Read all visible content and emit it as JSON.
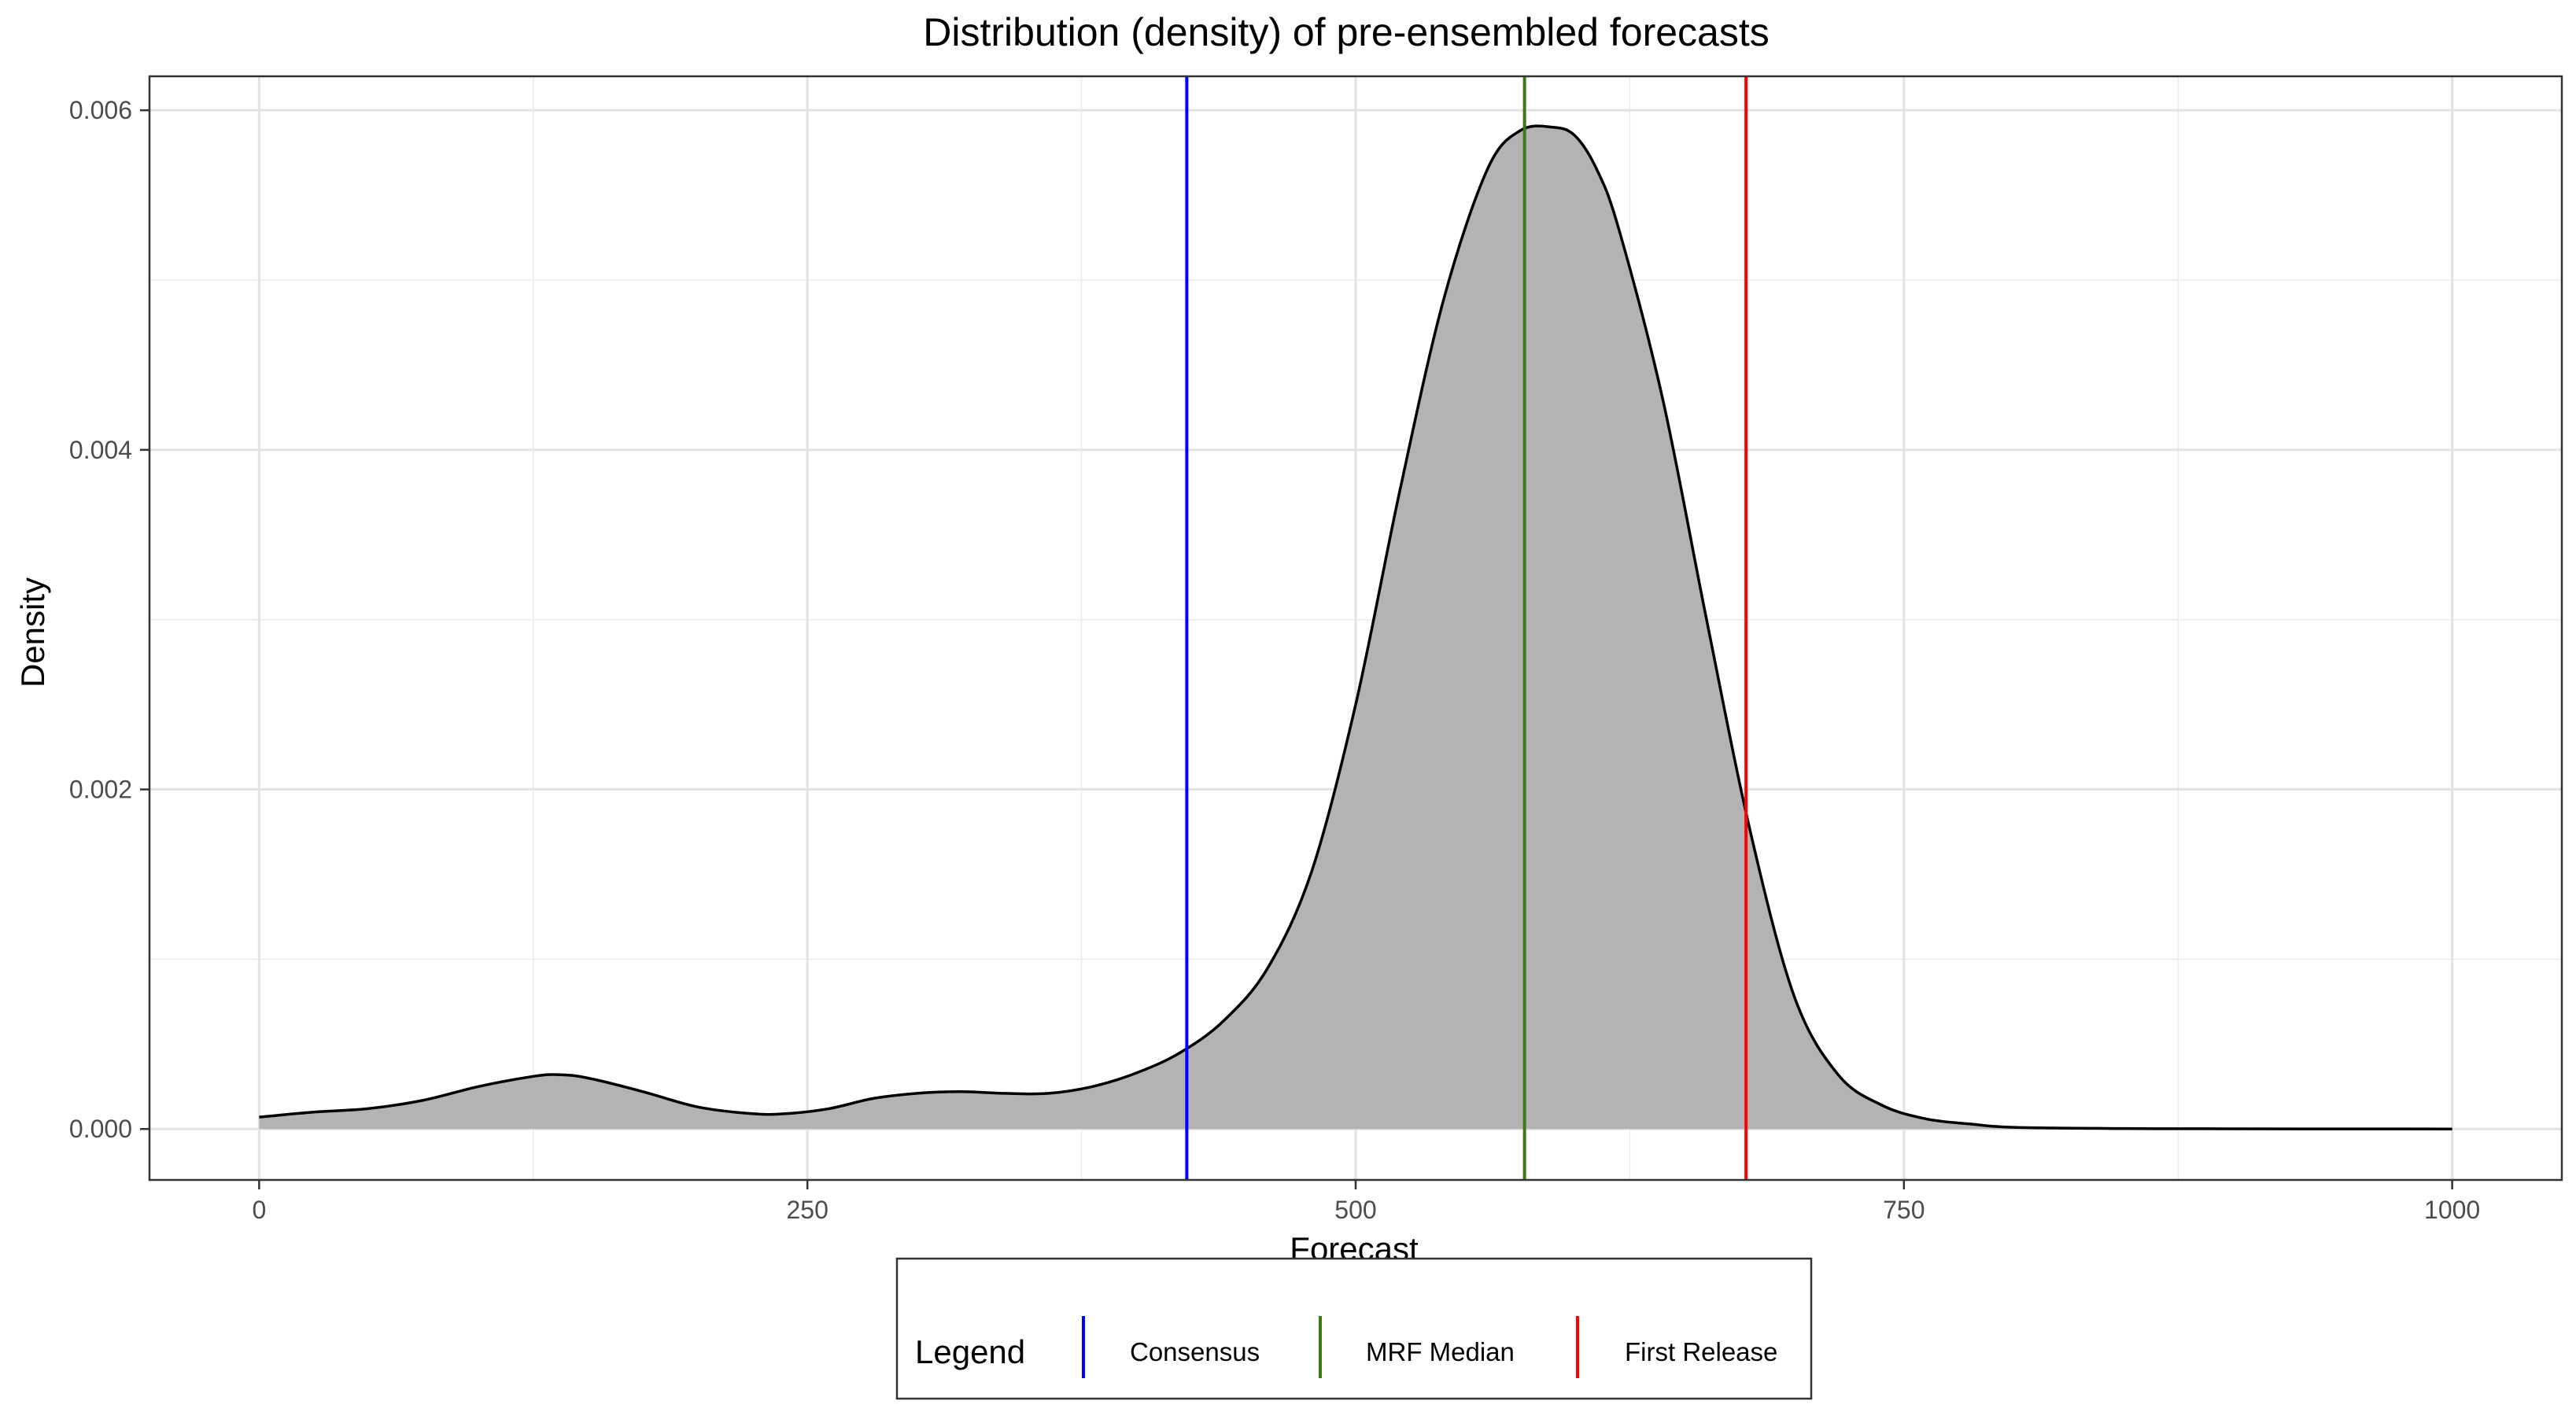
{
  "chart_data": {
    "type": "area",
    "title": "Distribution (density) of pre-ensembled forecasts",
    "xlabel": "Forecast",
    "ylabel": "Density",
    "xlim": [
      -50,
      1050
    ],
    "ylim": [
      -0.0003,
      0.0062
    ],
    "x_ticks": [
      0,
      250,
      500,
      750,
      1000
    ],
    "x_tick_labels": [
      "0",
      "250",
      "500",
      "750",
      "1000"
    ],
    "y_ticks": [
      0,
      0.002,
      0.004,
      0.006
    ],
    "y_tick_labels": [
      "0.000",
      "0.002",
      "0.004",
      "0.006"
    ],
    "grid": true,
    "density": {
      "x": [
        0,
        25,
        50,
        75,
        100,
        125,
        137,
        150,
        175,
        200,
        225,
        240,
        260,
        280,
        300,
        320,
        340,
        360,
        380,
        400,
        420,
        440,
        460,
        480,
        500,
        520,
        540,
        560,
        575,
        590,
        600,
        610,
        620,
        640,
        660,
        680,
        700,
        720,
        740,
        760,
        780,
        800,
        850,
        900,
        1000
      ],
      "y": [
        7e-05,
        0.0001,
        0.00012,
        0.00017,
        0.00025,
        0.00031,
        0.00032,
        0.0003,
        0.00022,
        0.00013,
        9e-05,
        9e-05,
        0.00012,
        0.00018,
        0.00021,
        0.00022,
        0.00021,
        0.00021,
        0.00025,
        0.00033,
        0.00045,
        0.00064,
        0.00095,
        0.00152,
        0.0025,
        0.00375,
        0.00488,
        0.00565,
        0.00588,
        0.0059,
        0.00585,
        0.00565,
        0.0053,
        0.0043,
        0.003,
        0.00175,
        0.00078,
        0.00032,
        0.00014,
        6e-05,
        3e-05,
        1e-05,
        3e-06,
        1e-06,
        0
      ]
    },
    "vlines": [
      {
        "name": "Consensus",
        "x": 423,
        "color": "#0000ff"
      },
      {
        "name": "MRF Median",
        "x": 577,
        "color": "#3a7a10"
      },
      {
        "name": "First Release",
        "x": 678,
        "color": "#ff0000"
      }
    ],
    "fill_color": "#b3b3b3",
    "line_color": "#000000",
    "legend": {
      "title": "Legend",
      "position": "bottom",
      "items": [
        "Consensus",
        "MRF Median",
        "First Release"
      ]
    }
  }
}
